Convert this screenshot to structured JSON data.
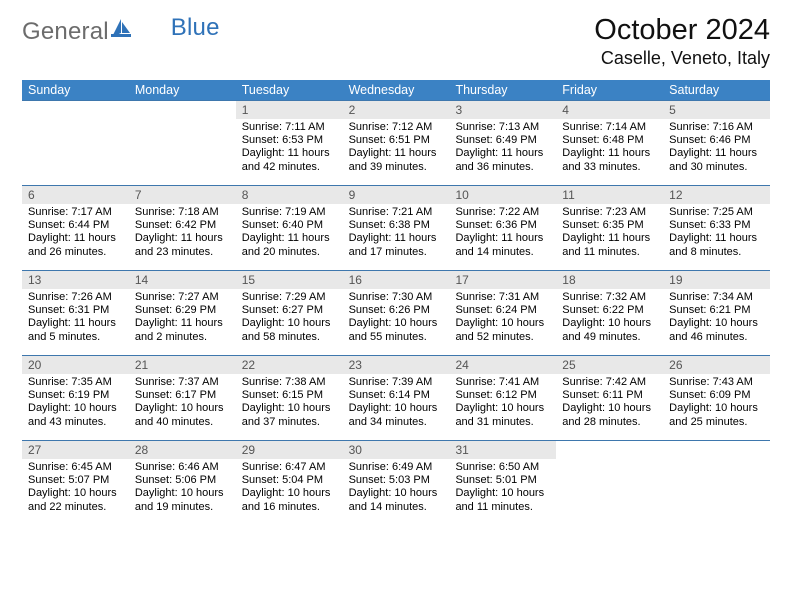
{
  "brand": {
    "text_left": "General",
    "text_right": "Blue",
    "left_color": "#6c6c6c",
    "right_color": "#2f72b8"
  },
  "title": {
    "month": "October 2024",
    "location": "Caselle, Veneto, Italy"
  },
  "style": {
    "header_band_color": "#3b82c4",
    "header_text_color": "#ffffff",
    "week_separator_color": "#3e77ad",
    "daynum_bg": "#e8e8e8",
    "daynum_color": "#555555",
    "body_text_color": "#000000",
    "page_bg": "#ffffff"
  },
  "days_of_week": [
    "Sunday",
    "Monday",
    "Tuesday",
    "Wednesday",
    "Thursday",
    "Friday",
    "Saturday"
  ],
  "weeks": [
    [
      null,
      null,
      {
        "n": "1",
        "sunrise": "7:11 AM",
        "sunset": "6:53 PM",
        "daylight": "11 hours and 42 minutes."
      },
      {
        "n": "2",
        "sunrise": "7:12 AM",
        "sunset": "6:51 PM",
        "daylight": "11 hours and 39 minutes."
      },
      {
        "n": "3",
        "sunrise": "7:13 AM",
        "sunset": "6:49 PM",
        "daylight": "11 hours and 36 minutes."
      },
      {
        "n": "4",
        "sunrise": "7:14 AM",
        "sunset": "6:48 PM",
        "daylight": "11 hours and 33 minutes."
      },
      {
        "n": "5",
        "sunrise": "7:16 AM",
        "sunset": "6:46 PM",
        "daylight": "11 hours and 30 minutes."
      }
    ],
    [
      {
        "n": "6",
        "sunrise": "7:17 AM",
        "sunset": "6:44 PM",
        "daylight": "11 hours and 26 minutes."
      },
      {
        "n": "7",
        "sunrise": "7:18 AM",
        "sunset": "6:42 PM",
        "daylight": "11 hours and 23 minutes."
      },
      {
        "n": "8",
        "sunrise": "7:19 AM",
        "sunset": "6:40 PM",
        "daylight": "11 hours and 20 minutes."
      },
      {
        "n": "9",
        "sunrise": "7:21 AM",
        "sunset": "6:38 PM",
        "daylight": "11 hours and 17 minutes."
      },
      {
        "n": "10",
        "sunrise": "7:22 AM",
        "sunset": "6:36 PM",
        "daylight": "11 hours and 14 minutes."
      },
      {
        "n": "11",
        "sunrise": "7:23 AM",
        "sunset": "6:35 PM",
        "daylight": "11 hours and 11 minutes."
      },
      {
        "n": "12",
        "sunrise": "7:25 AM",
        "sunset": "6:33 PM",
        "daylight": "11 hours and 8 minutes."
      }
    ],
    [
      {
        "n": "13",
        "sunrise": "7:26 AM",
        "sunset": "6:31 PM",
        "daylight": "11 hours and 5 minutes."
      },
      {
        "n": "14",
        "sunrise": "7:27 AM",
        "sunset": "6:29 PM",
        "daylight": "11 hours and 2 minutes."
      },
      {
        "n": "15",
        "sunrise": "7:29 AM",
        "sunset": "6:27 PM",
        "daylight": "10 hours and 58 minutes."
      },
      {
        "n": "16",
        "sunrise": "7:30 AM",
        "sunset": "6:26 PM",
        "daylight": "10 hours and 55 minutes."
      },
      {
        "n": "17",
        "sunrise": "7:31 AM",
        "sunset": "6:24 PM",
        "daylight": "10 hours and 52 minutes."
      },
      {
        "n": "18",
        "sunrise": "7:32 AM",
        "sunset": "6:22 PM",
        "daylight": "10 hours and 49 minutes."
      },
      {
        "n": "19",
        "sunrise": "7:34 AM",
        "sunset": "6:21 PM",
        "daylight": "10 hours and 46 minutes."
      }
    ],
    [
      {
        "n": "20",
        "sunrise": "7:35 AM",
        "sunset": "6:19 PM",
        "daylight": "10 hours and 43 minutes."
      },
      {
        "n": "21",
        "sunrise": "7:37 AM",
        "sunset": "6:17 PM",
        "daylight": "10 hours and 40 minutes."
      },
      {
        "n": "22",
        "sunrise": "7:38 AM",
        "sunset": "6:15 PM",
        "daylight": "10 hours and 37 minutes."
      },
      {
        "n": "23",
        "sunrise": "7:39 AM",
        "sunset": "6:14 PM",
        "daylight": "10 hours and 34 minutes."
      },
      {
        "n": "24",
        "sunrise": "7:41 AM",
        "sunset": "6:12 PM",
        "daylight": "10 hours and 31 minutes."
      },
      {
        "n": "25",
        "sunrise": "7:42 AM",
        "sunset": "6:11 PM",
        "daylight": "10 hours and 28 minutes."
      },
      {
        "n": "26",
        "sunrise": "7:43 AM",
        "sunset": "6:09 PM",
        "daylight": "10 hours and 25 minutes."
      }
    ],
    [
      {
        "n": "27",
        "sunrise": "6:45 AM",
        "sunset": "5:07 PM",
        "daylight": "10 hours and 22 minutes."
      },
      {
        "n": "28",
        "sunrise": "6:46 AM",
        "sunset": "5:06 PM",
        "daylight": "10 hours and 19 minutes."
      },
      {
        "n": "29",
        "sunrise": "6:47 AM",
        "sunset": "5:04 PM",
        "daylight": "10 hours and 16 minutes."
      },
      {
        "n": "30",
        "sunrise": "6:49 AM",
        "sunset": "5:03 PM",
        "daylight": "10 hours and 14 minutes."
      },
      {
        "n": "31",
        "sunrise": "6:50 AM",
        "sunset": "5:01 PM",
        "daylight": "10 hours and 11 minutes."
      },
      null,
      null
    ]
  ],
  "labels": {
    "sunrise_prefix": "Sunrise: ",
    "sunset_prefix": "Sunset: ",
    "daylight_prefix": "Daylight: "
  }
}
